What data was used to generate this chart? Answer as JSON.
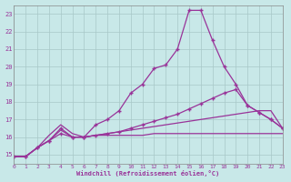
{
  "xlabel": "Windchill (Refroidissement éolien,°C)",
  "background_color": "#c8e8e8",
  "grid_color": "#a8c8c8",
  "line_color": "#993399",
  "xlim": [
    0,
    23
  ],
  "ylim": [
    14.5,
    23.5
  ],
  "xticks": [
    0,
    1,
    2,
    3,
    4,
    5,
    6,
    7,
    8,
    9,
    10,
    11,
    12,
    13,
    14,
    15,
    16,
    17,
    18,
    19,
    20,
    21,
    22,
    23
  ],
  "yticks": [
    15,
    16,
    17,
    18,
    19,
    20,
    21,
    22,
    23
  ],
  "lines": [
    {
      "x": [
        0,
        1,
        2,
        3,
        4,
        5,
        6,
        7,
        8,
        9,
        10,
        11,
        12,
        13,
        14,
        15,
        16,
        17,
        18,
        19,
        20,
        21,
        22,
        23
      ],
      "y": [
        14.9,
        14.9,
        15.4,
        15.8,
        16.5,
        16.0,
        16.0,
        16.7,
        17.0,
        17.5,
        18.5,
        19.0,
        19.9,
        20.1,
        21.0,
        23.2,
        23.2,
        21.5,
        20.0,
        19.0,
        17.8,
        17.4,
        17.0,
        16.5
      ],
      "marker": true
    },
    {
      "x": [
        0,
        1,
        2,
        3,
        4,
        5,
        6,
        7,
        8,
        9,
        10,
        11,
        12,
        13,
        14,
        15,
        16,
        17,
        18,
        19,
        20,
        21,
        22,
        23
      ],
      "y": [
        14.9,
        14.9,
        15.4,
        15.8,
        16.2,
        16.0,
        16.0,
        16.1,
        16.2,
        16.3,
        16.5,
        16.7,
        16.9,
        17.1,
        17.3,
        17.6,
        17.9,
        18.2,
        18.5,
        18.7,
        17.8,
        17.4,
        17.0,
        16.5
      ],
      "marker": true
    },
    {
      "x": [
        0,
        1,
        2,
        3,
        4,
        5,
        6,
        7,
        8,
        9,
        10,
        11,
        12,
        13,
        14,
        15,
        16,
        17,
        18,
        19,
        20,
        21,
        22,
        23
      ],
      "y": [
        14.9,
        14.9,
        15.4,
        15.8,
        16.4,
        16.0,
        16.0,
        16.1,
        16.2,
        16.3,
        16.4,
        16.5,
        16.6,
        16.7,
        16.8,
        16.9,
        17.0,
        17.1,
        17.2,
        17.3,
        17.4,
        17.5,
        17.5,
        16.5
      ],
      "marker": false
    },
    {
      "x": [
        0,
        1,
        2,
        3,
        4,
        5,
        6,
        7,
        8,
        9,
        10,
        11,
        12,
        13,
        14,
        15,
        16,
        17,
        18,
        19,
        20,
        21,
        22,
        23
      ],
      "y": [
        14.9,
        14.9,
        15.4,
        16.1,
        16.7,
        16.2,
        16.0,
        16.1,
        16.1,
        16.1,
        16.1,
        16.1,
        16.2,
        16.2,
        16.2,
        16.2,
        16.2,
        16.2,
        16.2,
        16.2,
        16.2,
        16.2,
        16.2,
        16.2
      ],
      "marker": false
    }
  ]
}
